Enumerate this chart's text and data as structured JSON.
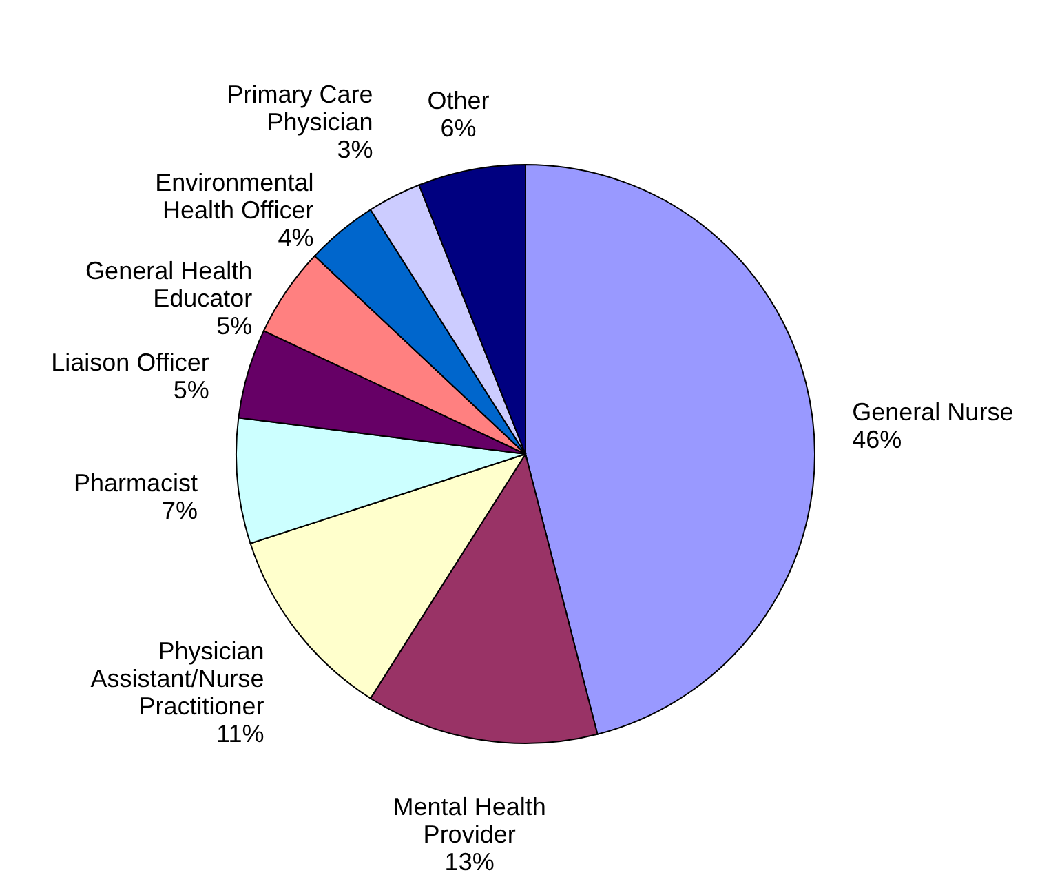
{
  "chart_data": {
    "type": "pie",
    "categories": [
      "General Nurse",
      "Mental Health Provider",
      "Physician Assistant/Nurse Practitioner",
      "Pharmacist",
      "Liaison Officer",
      "General Health Educator",
      "Environmental Health Officer",
      "Primary Care Physician",
      "Other"
    ],
    "values": [
      46,
      13,
      11,
      7,
      5,
      5,
      4,
      3,
      6
    ],
    "value_labels": [
      "46%",
      "13%",
      "11%",
      "7%",
      "5%",
      "5%",
      "4%",
      "3%",
      "6%"
    ],
    "colors": [
      "#9999ff",
      "#993366",
      "#ffffcc",
      "#ccffff",
      "#660066",
      "#ff8080",
      "#0066cc",
      "#ccccff",
      "#000080"
    ]
  }
}
